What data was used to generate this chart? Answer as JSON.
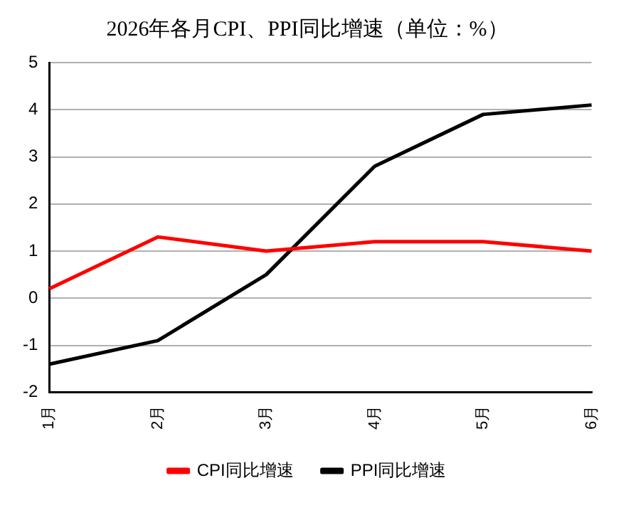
{
  "chart_data": {
    "type": "line",
    "title": "2026年各月CPI、PPI同比增速（单位：%）",
    "categories": [
      "1月",
      "2月",
      "3月",
      "4月",
      "5月",
      "6月"
    ],
    "series": [
      {
        "name": "CPI同比增速",
        "color": "#ff0000",
        "values": [
          0.2,
          1.3,
          1.0,
          1.2,
          1.2,
          1.0
        ]
      },
      {
        "name": "PPI同比增速",
        "color": "#000000",
        "values": [
          -1.4,
          -0.9,
          0.5,
          2.8,
          3.9,
          4.1
        ]
      }
    ],
    "ylim": [
      -2,
      5
    ],
    "yticks": [
      -2,
      -1,
      0,
      1,
      2,
      3,
      4,
      5
    ],
    "grid": "y",
    "legend": "bottom",
    "marker": "none",
    "line_style": "solid"
  }
}
